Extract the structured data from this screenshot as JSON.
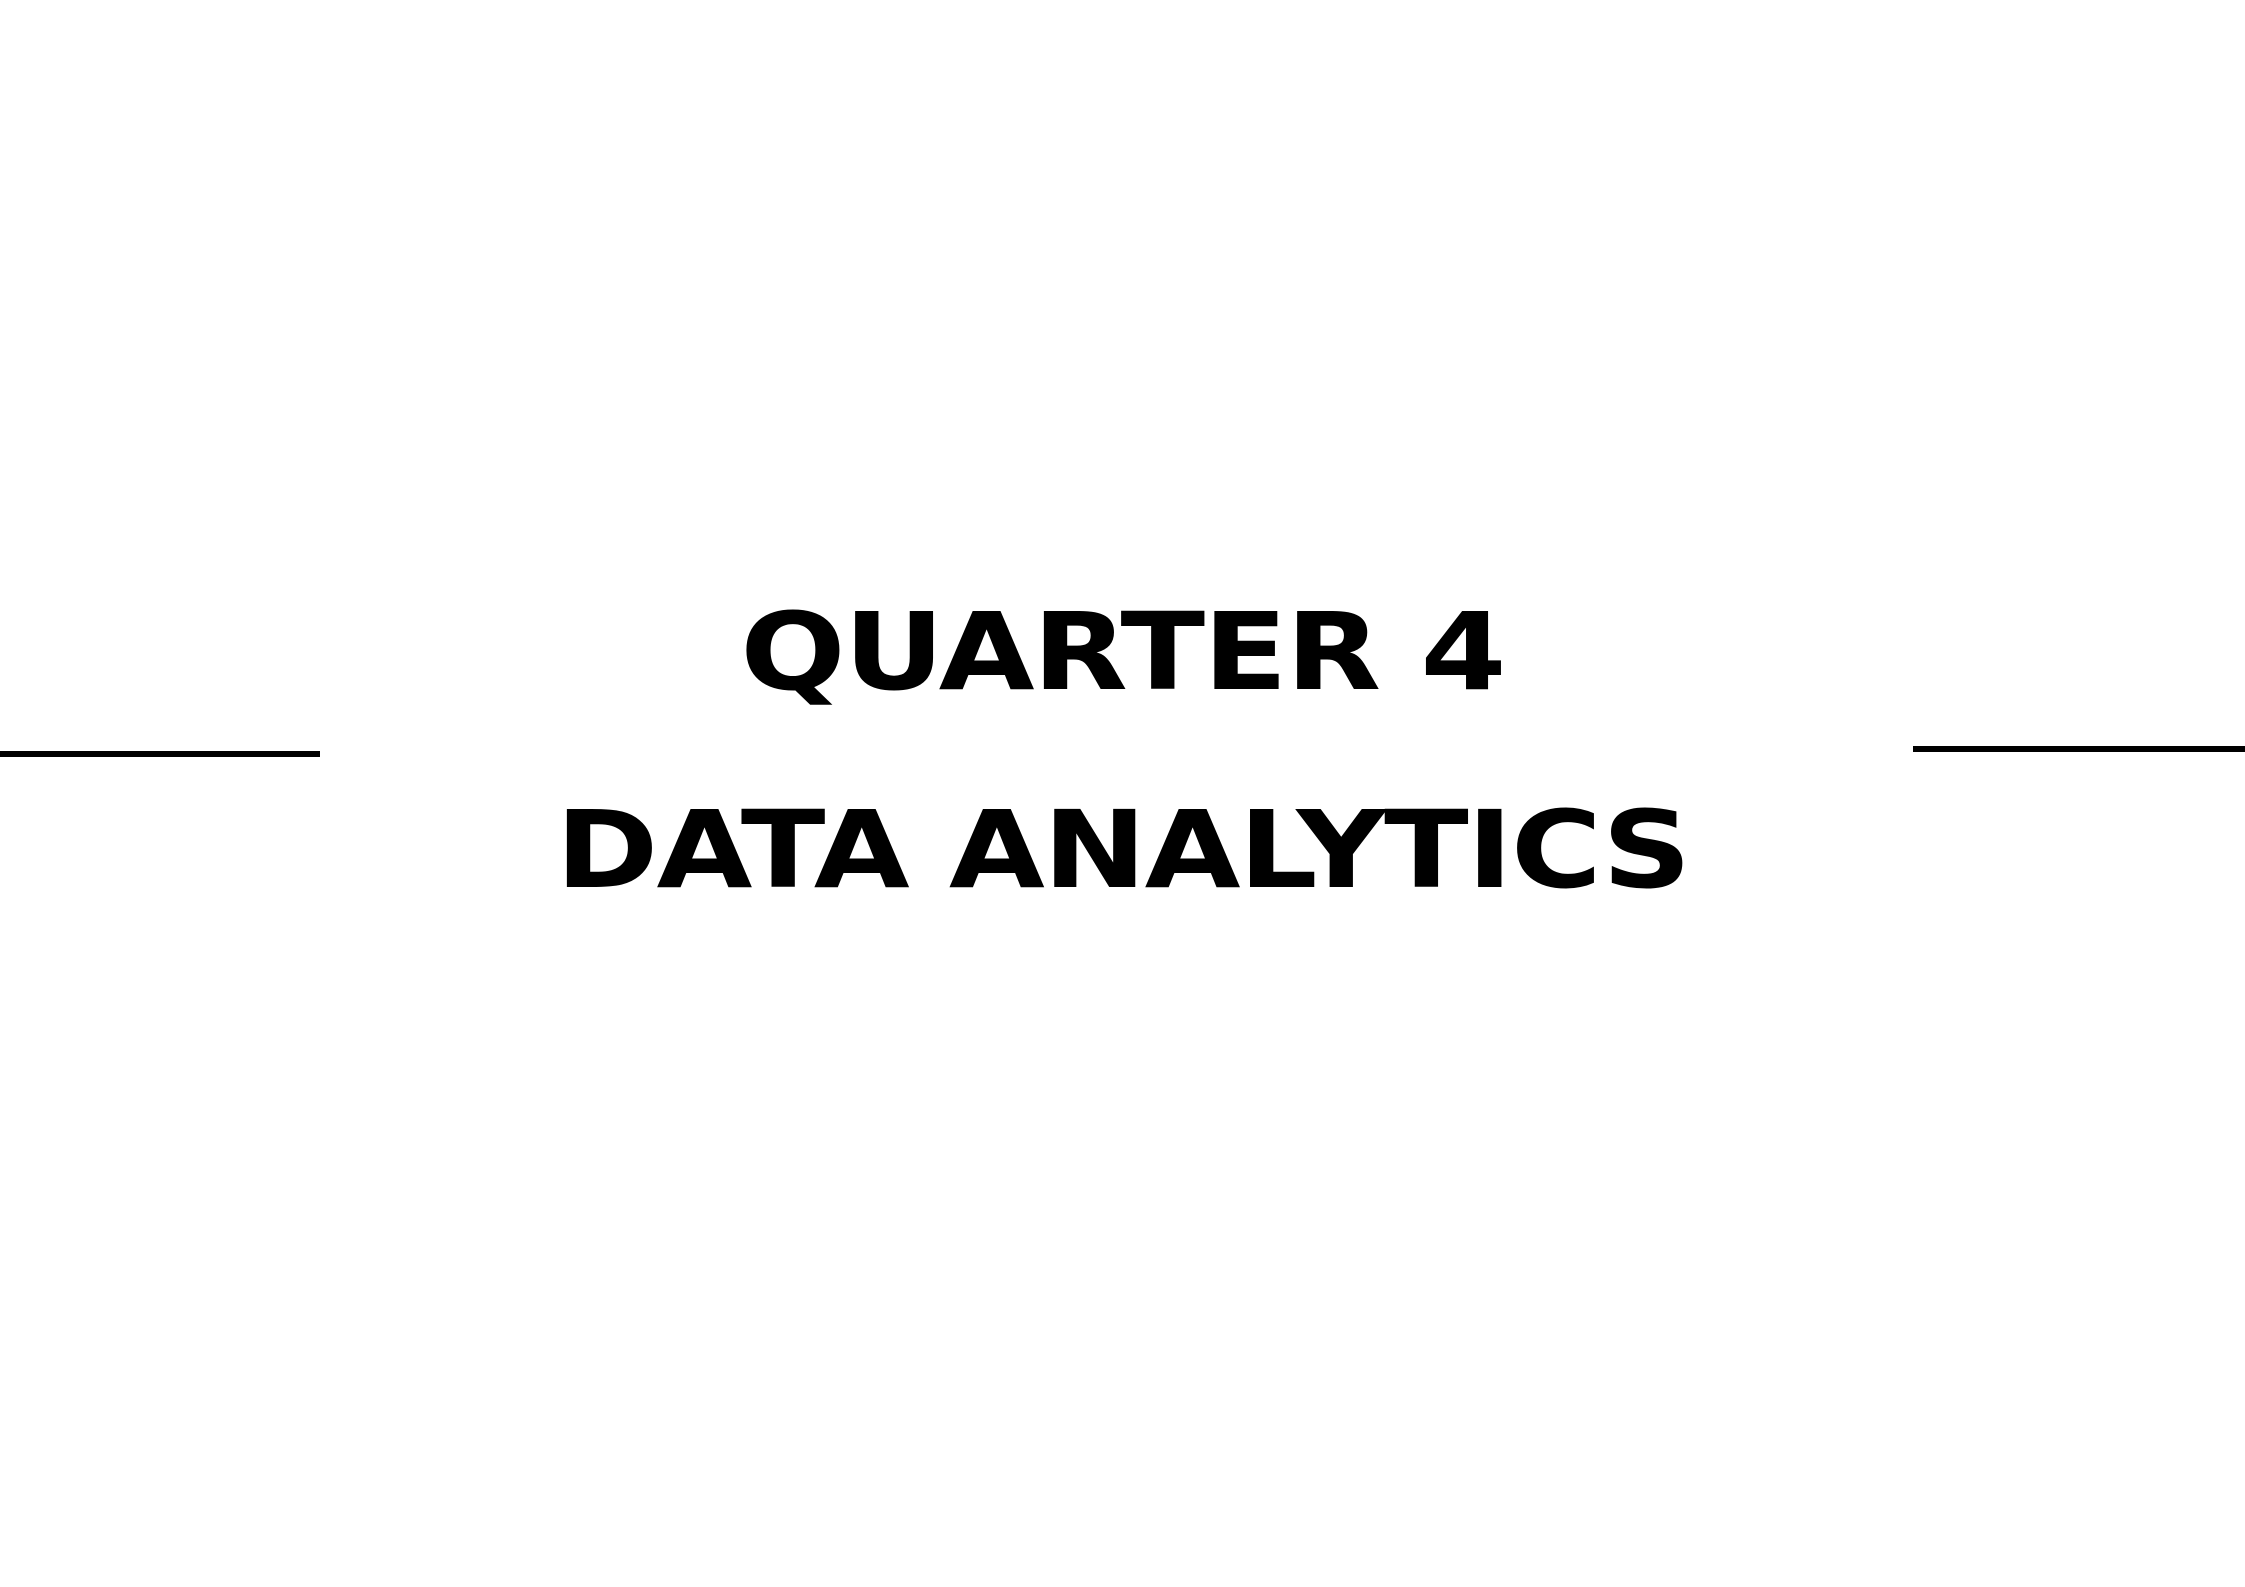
{
  "slide": {
    "title_line_1": "QUARTER 4",
    "title_line_2": "DATA ANALYTICS",
    "text_color": "#000000",
    "background_color": "#ffffff"
  }
}
